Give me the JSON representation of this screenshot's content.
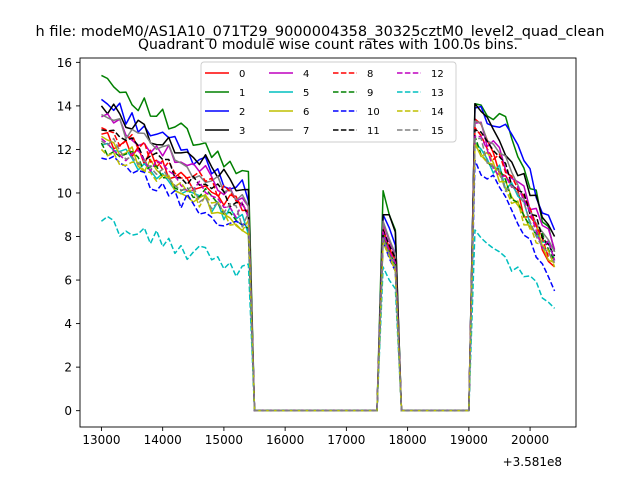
{
  "chart_data": {
    "type": "line",
    "suptitle": "h file: modeM0/AS1A10_071T29_9000004358_30325cztM0_level2_quad_clean",
    "title": "Quadrant 0 module wise count rates with 100.0s bins.",
    "xlabel": "",
    "ylabel": "",
    "x_offset_label": "+3.581e8",
    "xlim": [
      12650,
      20750
    ],
    "ylim": [
      -0.75,
      16.2
    ],
    "xticks": [
      13000,
      14000,
      15000,
      16000,
      17000,
      18000,
      19000,
      20000
    ],
    "xtick_labels": [
      "13000",
      "14000",
      "15000",
      "16000",
      "17000",
      "18000",
      "19000",
      "20000"
    ],
    "yticks": [
      0,
      2,
      4,
      6,
      8,
      10,
      12,
      14,
      16
    ],
    "ytick_labels": [
      "0",
      "2",
      "4",
      "6",
      "8",
      "10",
      "12",
      "14",
      "16"
    ],
    "legend_position": "upper center",
    "segments": [
      {
        "start": 13000,
        "end": 15400,
        "step": 100
      },
      {
        "start": 15500,
        "end": 17500,
        "step": 100,
        "zero": true
      },
      {
        "start": 17600,
        "end": 17800,
        "step": 100
      },
      {
        "start": 17900,
        "end": 19000,
        "step": 100,
        "zero": true
      },
      {
        "start": 19100,
        "end": 20400,
        "step": 100
      }
    ],
    "series": [
      {
        "name": "0",
        "color": "#ff0000",
        "style": "solid",
        "a": [
          12.7,
          9.2
        ],
        "b": [
          8.4,
          7.4,
          7.0
        ],
        "c": [
          13.4,
          10.3,
          6.6
        ]
      },
      {
        "name": "1",
        "color": "#008000",
        "style": "solid",
        "a": [
          15.4,
          10.6
        ],
        "b": [
          10.1,
          9.0,
          8.3
        ],
        "c": [
          14.1,
          13.0,
          7.3
        ]
      },
      {
        "name": "2",
        "color": "#0000ff",
        "style": "solid",
        "a": [
          14.3,
          10.0
        ],
        "b": [
          9.0,
          8.4,
          7.6
        ],
        "c": [
          13.9,
          12.6,
          8.3
        ]
      },
      {
        "name": "3",
        "color": "#000000",
        "style": "solid",
        "a": [
          14.0,
          10.2
        ],
        "b": [
          9.0,
          9.0,
          8.2
        ],
        "c": [
          14.1,
          11.7,
          8.0
        ]
      },
      {
        "name": "4",
        "color": "#bf00bf",
        "style": "solid",
        "a": [
          13.5,
          9.7
        ],
        "b": [
          8.6,
          7.8,
          7.1
        ],
        "c": [
          13.2,
          11.1,
          7.4
        ]
      },
      {
        "name": "5",
        "color": "#00bfbf",
        "style": "solid",
        "a": [
          12.2,
          8.5
        ],
        "b": [
          8.0,
          7.2,
          6.6
        ],
        "c": [
          12.3,
          10.2,
          6.9
        ]
      },
      {
        "name": "6",
        "color": "#bfbf00",
        "style": "solid",
        "a": [
          12.6,
          8.4
        ],
        "b": [
          7.9,
          7.1,
          6.5
        ],
        "c": [
          12.3,
          10.3,
          6.8
        ]
      },
      {
        "name": "7",
        "color": "#808080",
        "style": "solid",
        "a": [
          13.6,
          9.6
        ],
        "b": [
          8.7,
          7.9,
          7.2
        ],
        "c": [
          13.3,
          11.0,
          7.3
        ]
      },
      {
        "name": "8",
        "color": "#ff0000",
        "style": "dashed",
        "a": [
          13.0,
          9.4
        ],
        "b": [
          8.3,
          7.5,
          6.9
        ],
        "c": [
          13.0,
          10.6,
          7.0
        ]
      },
      {
        "name": "9",
        "color": "#008000",
        "style": "dashed",
        "a": [
          12.3,
          8.8
        ],
        "b": [
          8.1,
          7.3,
          6.7
        ],
        "c": [
          12.6,
          10.0,
          6.9
        ]
      },
      {
        "name": "10",
        "color": "#0000ff",
        "style": "dashed",
        "a": [
          11.6,
          8.1
        ],
        "b": [
          7.8,
          7.0,
          6.4
        ],
        "c": [
          11.5,
          9.3,
          5.5
        ]
      },
      {
        "name": "11",
        "color": "#000000",
        "style": "dashed",
        "a": [
          12.9,
          9.3
        ],
        "b": [
          8.3,
          7.6,
          7.0
        ],
        "c": [
          12.9,
          10.8,
          7.1
        ]
      },
      {
        "name": "12",
        "color": "#bf00bf",
        "style": "dashed",
        "a": [
          12.5,
          9.0
        ],
        "b": [
          8.2,
          7.3,
          6.8
        ],
        "c": [
          12.6,
          10.4,
          6.9
        ]
      },
      {
        "name": "13",
        "color": "#00bfbf",
        "style": "dashed",
        "a": [
          8.7,
          6.4
        ],
        "b": [
          6.6,
          6.0,
          5.6
        ],
        "c": [
          8.3,
          6.6,
          4.7
        ]
      },
      {
        "name": "14",
        "color": "#bfbf00",
        "style": "dashed",
        "a": [
          12.0,
          8.4
        ],
        "b": [
          7.7,
          7.1,
          6.4
        ],
        "c": [
          12.2,
          9.9,
          6.6
        ]
      },
      {
        "name": "15",
        "color": "#808080",
        "style": "dashed",
        "a": [
          12.4,
          8.7
        ],
        "b": [
          7.9,
          7.2,
          6.6
        ],
        "c": [
          12.5,
          10.1,
          6.8
        ]
      }
    ]
  }
}
